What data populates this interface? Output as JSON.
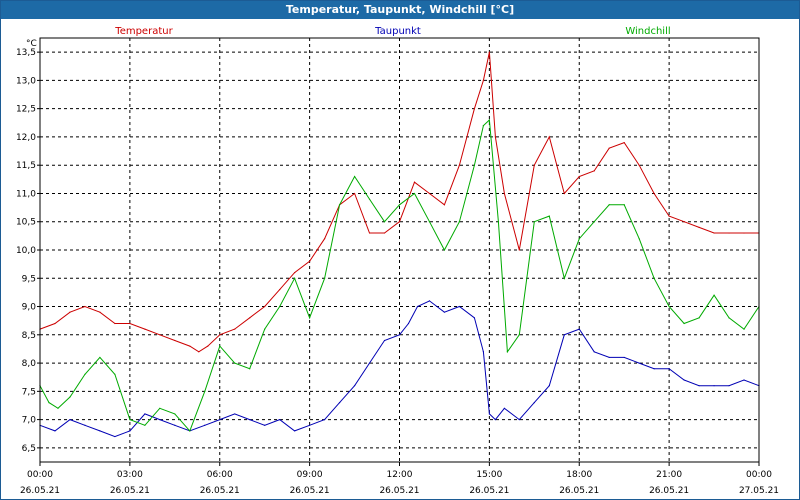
{
  "window": {
    "title": "Temperatur, Taupunkt, Windchill [°C]"
  },
  "chart_data": {
    "type": "line",
    "title": "Temperatur, Taupunkt, Windchill [°C]",
    "ylabel": "°C",
    "ylim": [
      6.25,
      13.75
    ],
    "yticks": [
      6.5,
      7.0,
      7.5,
      8.0,
      8.5,
      9.0,
      9.5,
      10.0,
      10.5,
      11.0,
      11.5,
      12.0,
      12.5,
      13.0,
      13.5
    ],
    "ytick_labels": [
      "6,5",
      "7,0",
      "7,5",
      "8,0",
      "8,5",
      "9,0",
      "9,5",
      "10,0",
      "10,5",
      "11,0",
      "11,5",
      "12,0",
      "12,5",
      "13,0",
      "13,5"
    ],
    "xlim": [
      0,
      24
    ],
    "xticks": [
      {
        "time": "00:00",
        "date": "26.05.21"
      },
      {
        "time": "03:00",
        "date": "26.05.21"
      },
      {
        "time": "06:00",
        "date": "26.05.21"
      },
      {
        "time": "09:00",
        "date": "26.05.21"
      },
      {
        "time": "12:00",
        "date": "26.05.21"
      },
      {
        "time": "15:00",
        "date": "26.05.21"
      },
      {
        "time": "18:00",
        "date": "26.05.21"
      },
      {
        "time": "21:00",
        "date": "26.05.21"
      },
      {
        "time": "00:00",
        "date": "27.05.21"
      }
    ],
    "grid": true,
    "legend": "top",
    "series": [
      {
        "name": "Temperatur",
        "color": "#cc0000",
        "x": [
          0,
          0.5,
          1,
          1.5,
          2,
          2.5,
          3,
          3.5,
          4,
          4.5,
          5,
          5.3,
          5.6,
          6,
          6.5,
          7,
          7.5,
          8,
          8.5,
          9,
          9.5,
          10,
          10.5,
          11,
          11.5,
          12,
          12.5,
          13,
          13.5,
          14,
          14.5,
          14.8,
          15,
          15.2,
          15.5,
          16,
          16.5,
          17,
          17.5,
          18,
          18.5,
          19,
          19.5,
          20,
          20.5,
          21,
          21.5,
          22,
          22.5,
          23,
          23.5,
          24
        ],
        "values": [
          8.6,
          8.7,
          8.9,
          9.0,
          8.9,
          8.7,
          8.7,
          8.6,
          8.5,
          8.4,
          8.3,
          8.2,
          8.3,
          8.5,
          8.6,
          8.8,
          9.0,
          9.3,
          9.6,
          9.8,
          10.2,
          10.8,
          11.0,
          10.3,
          10.3,
          10.5,
          11.2,
          11.0,
          10.8,
          11.5,
          12.5,
          13.0,
          13.5,
          12.0,
          11.0,
          10.0,
          11.5,
          12.0,
          11.0,
          11.3,
          11.4,
          11.8,
          11.9,
          11.5,
          11.0,
          10.6,
          10.5,
          10.4,
          10.3,
          10.3,
          10.3,
          10.3
        ]
      },
      {
        "name": "Taupunkt",
        "color": "#0000b4",
        "x": [
          0,
          0.5,
          1,
          1.5,
          2,
          2.5,
          3,
          3.5,
          4,
          4.5,
          5,
          5.5,
          6,
          6.5,
          7,
          7.5,
          8,
          8.5,
          9,
          9.5,
          10,
          10.5,
          11,
          11.5,
          12,
          12.3,
          12.6,
          13,
          13.5,
          14,
          14.5,
          14.8,
          15,
          15.2,
          15.5,
          16,
          16.5,
          17,
          17.5,
          18,
          18.5,
          19,
          19.5,
          20,
          20.5,
          21,
          21.5,
          22,
          22.5,
          23,
          23.5,
          24
        ],
        "values": [
          6.9,
          6.8,
          7.0,
          6.9,
          6.8,
          6.7,
          6.8,
          7.1,
          7.0,
          6.9,
          6.8,
          6.9,
          7.0,
          7.1,
          7.0,
          6.9,
          7.0,
          6.8,
          6.9,
          7.0,
          7.3,
          7.6,
          8.0,
          8.4,
          8.5,
          8.7,
          9.0,
          9.1,
          8.9,
          9.0,
          8.8,
          8.2,
          7.1,
          7.0,
          7.2,
          7.0,
          7.3,
          7.6,
          8.5,
          8.6,
          8.2,
          8.1,
          8.1,
          8.0,
          7.9,
          7.9,
          7.7,
          7.6,
          7.6,
          7.6,
          7.7,
          7.6
        ]
      },
      {
        "name": "Windchill",
        "color": "#00aa00",
        "x": [
          0,
          0.3,
          0.6,
          1,
          1.5,
          2,
          2.5,
          3,
          3.5,
          4,
          4.5,
          5,
          5.5,
          6,
          6.5,
          7,
          7.5,
          8,
          8.5,
          9,
          9.5,
          10,
          10.5,
          11,
          11.5,
          12,
          12.5,
          13,
          13.5,
          14,
          14.5,
          14.8,
          15,
          15.3,
          15.6,
          16,
          16.5,
          17,
          17.5,
          18,
          18.5,
          19,
          19.5,
          20,
          20.5,
          21,
          21.5,
          22,
          22.5,
          23,
          23.5,
          24
        ],
        "values": [
          7.6,
          7.3,
          7.2,
          7.4,
          7.8,
          8.1,
          7.8,
          7.0,
          6.9,
          7.2,
          7.1,
          6.8,
          7.5,
          8.3,
          8.0,
          7.9,
          8.6,
          9.0,
          9.5,
          8.8,
          9.5,
          10.8,
          11.3,
          10.9,
          10.5,
          10.8,
          11.0,
          10.5,
          10.0,
          10.5,
          11.5,
          12.2,
          12.3,
          10.5,
          8.2,
          8.5,
          10.5,
          10.6,
          9.5,
          10.2,
          10.5,
          10.8,
          10.8,
          10.2,
          9.5,
          9.0,
          8.7,
          8.8,
          9.2,
          8.8,
          8.6,
          9.0
        ]
      }
    ]
  }
}
